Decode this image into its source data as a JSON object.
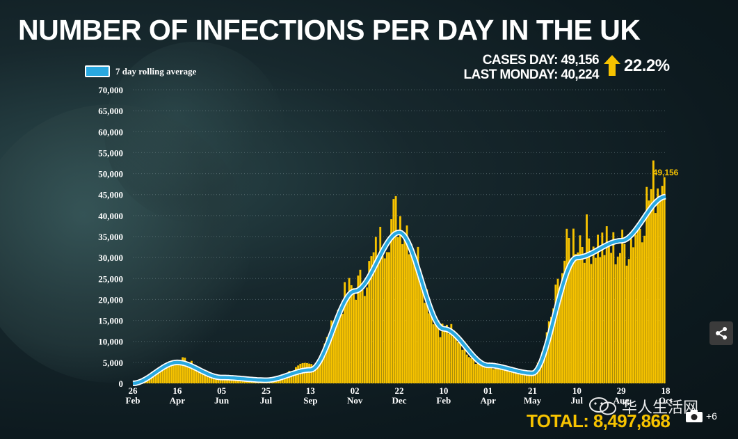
{
  "title": "NUMBER OF INFECTIONS PER DAY IN THE UK",
  "legend": {
    "label": "7 day rolling average"
  },
  "stats": {
    "cases_day": "CASES DAY: 49,156",
    "last_monday": "LAST MONDAY: 40,224",
    "change": "22.2%"
  },
  "total": "TOTAL: 8,497,868",
  "watermark": {
    "text": "华人生活网"
  },
  "photo_count": "+6",
  "colors": {
    "bars": "#f7c300",
    "avg_line": "#29a8e0",
    "avg_outline": "#ffffff",
    "up_arrow": "#f7c300",
    "background": "#0d1a1f"
  },
  "chart_data": {
    "type": "bar",
    "ylim": [
      0,
      70000
    ],
    "yticks": [
      "0",
      "5,000",
      "10,000",
      "15,000",
      "20,000",
      "25,000",
      "30,000",
      "35,000",
      "40,000",
      "45,000",
      "50,000",
      "55,000",
      "60,000",
      "65,000",
      "70,000"
    ],
    "xticks": [
      {
        "day": "26",
        "month": "Feb"
      },
      {
        "day": "16",
        "month": "Apr"
      },
      {
        "day": "05",
        "month": "Jun"
      },
      {
        "day": "25",
        "month": "Jul"
      },
      {
        "day": "13",
        "month": "Sep"
      },
      {
        "day": "02",
        "month": "Nov"
      },
      {
        "day": "22",
        "month": "Dec"
      },
      {
        "day": "10",
        "month": "Feb"
      },
      {
        "day": "01",
        "month": "Apr"
      },
      {
        "day": "21",
        "month": "May"
      },
      {
        "day": "10",
        "month": "Jul"
      },
      {
        "day": "29",
        "month": "Aug"
      },
      {
        "day": "18",
        "month": "Oct"
      }
    ],
    "grid": true,
    "annotation": {
      "label": "49,156",
      "value": 49156
    },
    "daily": [
      {
        "x": "26 Feb",
        "y": 100
      },
      {
        "x": "16 Apr",
        "y": 5500
      },
      {
        "x": "05 Jun",
        "y": 1500
      },
      {
        "x": "25 Jul",
        "y": 800
      },
      {
        "x": "13 Sep",
        "y": 4500
      },
      {
        "x": "02 Nov",
        "y": 23000
      },
      {
        "x": "22 Dec",
        "y": 40000
      },
      {
        "x": "10 Feb",
        "y": 13000
      },
      {
        "x": "01 Apr",
        "y": 4000
      },
      {
        "x": "21 May",
        "y": 2500
      },
      {
        "x": "10 Jul",
        "y": 35000
      },
      {
        "x": "29 Aug",
        "y": 32000
      },
      {
        "x": "18 Oct",
        "y": 49156
      }
    ],
    "rolling_average": [
      {
        "x": "26 Feb",
        "y": 0
      },
      {
        "x": "16 Apr",
        "y": 5000
      },
      {
        "x": "05 Jun",
        "y": 1400
      },
      {
        "x": "25 Jul",
        "y": 750
      },
      {
        "x": "13 Sep",
        "y": 3200
      },
      {
        "x": "02 Nov",
        "y": 22000
      },
      {
        "x": "22 Dec",
        "y": 36000
      },
      {
        "x": "10 Feb",
        "y": 13000
      },
      {
        "x": "01 Apr",
        "y": 4300
      },
      {
        "x": "21 May",
        "y": 2400
      },
      {
        "x": "10 Jul",
        "y": 30000
      },
      {
        "x": "29 Aug",
        "y": 34000
      },
      {
        "x": "18 Oct",
        "y": 44500
      }
    ]
  }
}
